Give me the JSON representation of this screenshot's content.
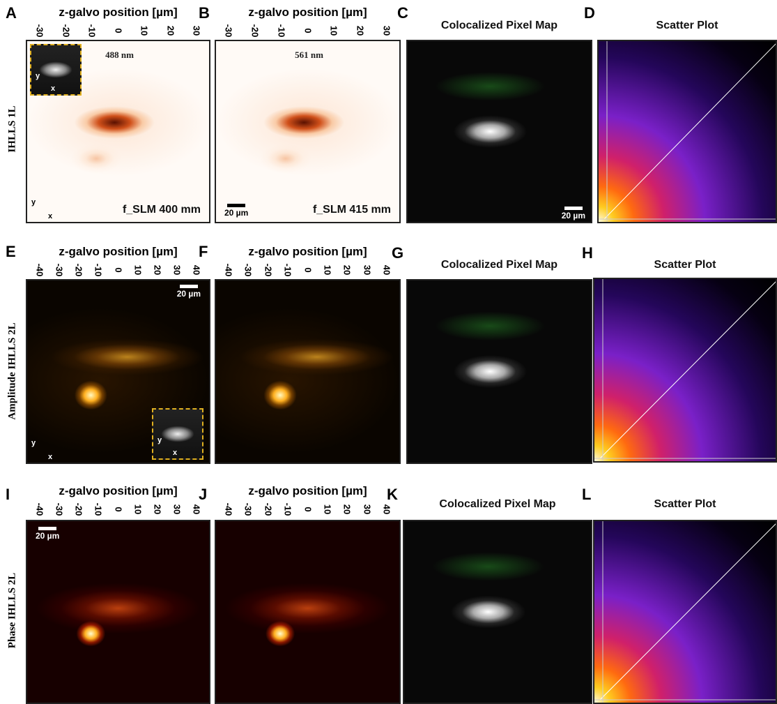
{
  "row_labels": [
    "IHLLS 1L",
    "Amplitude IHLLS 2L",
    "Phase IHLLS 2L"
  ],
  "panels": [
    {
      "letter": "A",
      "title": "z-galvo position [µm]",
      "ticks": [
        "-30",
        "-20",
        "-10",
        "0",
        "10",
        "20",
        "30"
      ],
      "labels": {
        "wavelength": "488 nm",
        "f_slm": "f_SLM 400 mm",
        "axis_y": "y",
        "axis_x": "x",
        "inset_axis_y": "y",
        "inset_axis_x": "x"
      }
    },
    {
      "letter": "B",
      "title": "z-galvo position [µm]",
      "ticks": [
        "-30",
        "-20",
        "-10",
        "0",
        "10",
        "20",
        "30"
      ],
      "labels": {
        "wavelength": "561 nm",
        "scale_bar": "20 µm",
        "f_slm": "f_SLM 415 mm"
      }
    },
    {
      "letter": "C",
      "title": "Colocalized Pixel Map",
      "labels": {
        "scale_bar": "20 µm"
      }
    },
    {
      "letter": "D",
      "title": "Scatter Plot"
    },
    {
      "letter": "E",
      "title": "z-galvo position [µm]",
      "ticks": [
        "-40",
        "-30",
        "-20",
        "-10",
        "0",
        "10",
        "20",
        "30",
        "40"
      ],
      "labels": {
        "scale_bar": "20 µm",
        "axis_y": "y",
        "axis_x": "x",
        "inset_axis_y": "y",
        "inset_axis_x": "x"
      }
    },
    {
      "letter": "F",
      "title": "z-galvo position [µm]",
      "ticks": [
        "-40",
        "-30",
        "-20",
        "-10",
        "0",
        "10",
        "20",
        "30",
        "40"
      ]
    },
    {
      "letter": "G",
      "title": "Colocalized Pixel Map"
    },
    {
      "letter": "H",
      "title": "Scatter Plot"
    },
    {
      "letter": "I",
      "title": "z-galvo position [µm]",
      "ticks": [
        "-40",
        "-30",
        "-20",
        "-10",
        "0",
        "10",
        "20",
        "30",
        "40"
      ],
      "labels": {
        "scale_bar": "20 µm"
      }
    },
    {
      "letter": "J",
      "title": "z-galvo position [µm]",
      "ticks": [
        "-40",
        "-30",
        "-20",
        "-10",
        "0",
        "10",
        "20",
        "30",
        "40"
      ]
    },
    {
      "letter": "K",
      "title": "Colocalized Pixel Map"
    },
    {
      "letter": "L",
      "title": "Scatter Plot"
    }
  ]
}
